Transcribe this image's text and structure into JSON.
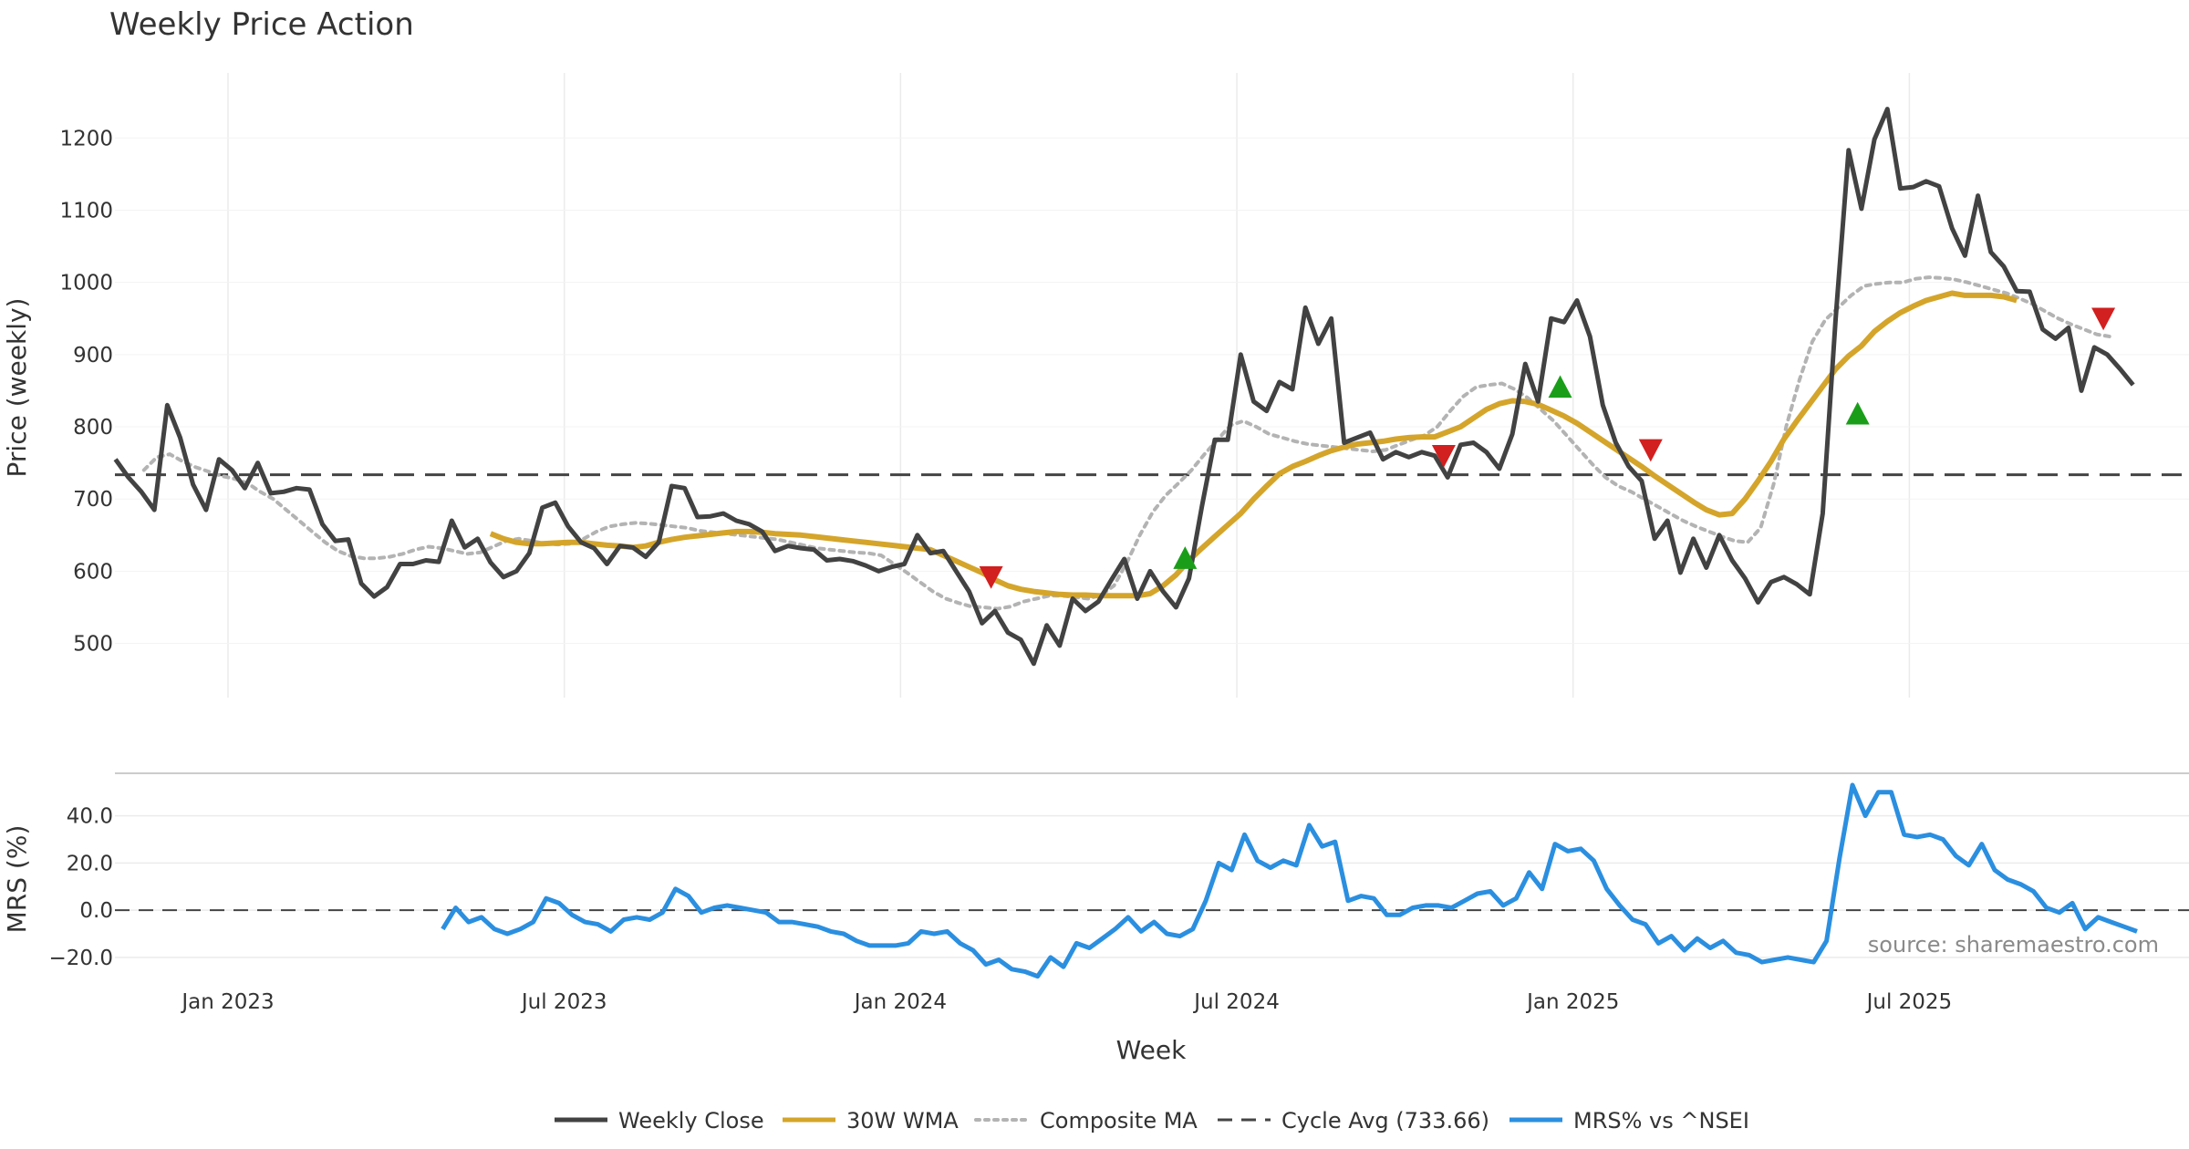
{
  "chart_data": {
    "type": "line",
    "title": "Weekly Price Action",
    "xlabel": "Week",
    "x_tick_labels": [
      "Jan 2023",
      "Jul 2023",
      "Jan 2024",
      "Jul 2024",
      "Jan 2025",
      "Jul 2025"
    ],
    "x_tick_weeks": [
      0,
      26,
      52,
      78,
      104,
      130
    ],
    "price_panel": {
      "ylabel": "Price (weekly)",
      "ylim": [
        425,
        1290
      ],
      "yticks": [
        500,
        600,
        700,
        800,
        900,
        1000,
        1100,
        1200
      ],
      "ytick_labels": [
        "500",
        "600",
        "700",
        "800",
        "900",
        "1000",
        "1100",
        "1200"
      ],
      "cycle_avg": 733.66,
      "x_start": -8.7,
      "weekly_close": [
        755,
        730,
        710,
        685,
        830,
        785,
        720,
        685,
        755,
        740,
        715,
        750,
        708,
        710,
        715,
        713,
        665,
        642,
        644,
        583,
        565,
        578,
        610,
        610,
        615,
        613,
        670,
        633,
        645,
        612,
        592,
        600,
        625,
        688,
        695,
        662,
        640,
        632,
        610,
        635,
        633,
        620,
        640,
        718,
        715,
        675,
        676,
        680,
        670,
        665,
        655,
        628,
        635,
        632,
        630,
        615,
        617,
        614,
        608,
        600,
        606,
        610,
        650,
        625,
        628,
        600,
        572,
        528,
        545,
        515,
        505,
        472,
        525,
        497,
        562,
        545,
        558,
        588,
        617,
        562,
        600,
        572,
        550,
        590,
        690,
        782,
        782,
        900,
        835,
        822,
        862,
        852,
        965,
        915,
        950,
        778,
        785,
        792,
        755,
        765,
        758,
        765,
        760,
        730,
        775,
        778,
        765,
        742,
        790,
        887,
        835,
        950,
        945,
        975,
        925,
        830,
        778,
        745,
        725,
        645,
        670,
        598,
        645,
        605,
        650,
        615,
        590,
        557,
        585,
        592,
        582,
        568,
        680,
        950,
        1183,
        1102,
        1198,
        1240,
        1130,
        1132,
        1140,
        1133,
        1075,
        1037,
        1120,
        1042,
        1022,
        988,
        987,
        935,
        922,
        937,
        850,
        910,
        900,
        880,
        858
      ],
      "wma_30w": {
        "x_start": 20.3,
        "values": [
          652,
          645,
          640,
          638,
          638,
          639,
          640,
          640,
          638,
          636,
          635,
          633,
          635,
          640,
          644,
          647,
          649,
          651,
          653,
          655,
          655,
          654,
          652,
          651,
          650,
          648,
          646,
          644,
          642,
          640,
          638,
          636,
          634,
          632,
          630,
          622,
          614,
          606,
          598,
          588,
          580,
          575,
          572,
          570,
          568,
          567,
          567,
          566,
          566,
          566,
          566,
          569,
          580,
          595,
          615,
          632,
          648,
          664,
          680,
          700,
          718,
          735,
          745,
          752,
          760,
          767,
          772,
          776,
          778,
          780,
          783,
          785,
          786,
          786,
          793,
          800,
          812,
          824,
          832,
          836,
          835,
          831,
          823,
          815,
          805,
          793,
          781,
          769,
          757,
          745,
          732,
          720,
          708,
          696,
          685,
          678,
          680,
          700,
          725,
          752,
          783,
          808,
          832,
          856,
          880,
          898,
          912,
          932,
          946,
          958,
          967,
          975,
          980,
          985,
          982,
          982,
          982,
          980,
          975
        ]
      },
      "composite_ma": {
        "x_start": -6.5,
        "values": [
          740,
          758,
          762,
          752,
          744,
          738,
          732,
          728,
          722,
          710,
          700,
          685,
          670,
          655,
          640,
          628,
          621,
          618,
          618,
          620,
          624,
          630,
          634,
          632,
          628,
          624,
          626,
          634,
          642,
          645,
          642,
          638,
          637,
          638,
          645,
          655,
          662,
          665,
          667,
          666,
          664,
          662,
          660,
          656,
          654,
          652,
          650,
          648,
          646,
          644,
          640,
          636,
          632,
          630,
          628,
          626,
          625,
          622,
          610,
          598,
          585,
          572,
          562,
          556,
          551,
          550,
          548,
          551,
          558,
          562,
          566,
          566,
          564,
          562,
          567,
          580,
          612,
          650,
          682,
          705,
          722,
          740,
          762,
          782,
          802,
          808,
          800,
          790,
          785,
          780,
          776,
          774,
          772,
          770,
          768,
          766,
          768,
          775,
          782,
          788,
          800,
          822,
          842,
          855,
          858,
          860,
          852,
          840,
          824,
          808,
          788,
          768,
          748,
          730,
          718,
          710,
          700,
          690,
          680,
          670,
          662,
          655,
          648,
          642,
          640,
          660,
          720,
          802,
          865,
          918,
          948,
          965,
          982,
          995,
          998,
          1000,
          1000,
          1005,
          1007,
          1006,
          1004,
          1000,
          995,
          990,
          985,
          978,
          970,
          960,
          950,
          942,
          935,
          928,
          925
        ]
      },
      "buy_signals": [
        {
          "week": 74,
          "price": 618
        },
        {
          "week": 103,
          "price": 855
        },
        {
          "week": 126,
          "price": 818
        }
      ],
      "sell_signals": [
        {
          "week": 59,
          "price": 592
        },
        {
          "week": 94,
          "price": 760
        },
        {
          "week": 110,
          "price": 768
        },
        {
          "week": 145,
          "price": 950
        }
      ]
    },
    "mrs_panel": {
      "ylabel": "MRS (%)",
      "ylim": [
        -27,
        58
      ],
      "yticks": [
        -20,
        0,
        20,
        40
      ],
      "ytick_labels": [
        "−20.0",
        "0.0",
        "20.0",
        "40.0"
      ],
      "series_name": "MRS% vs ^NSEI",
      "x_start": 16.6,
      "values": [
        -8,
        1,
        -5,
        -3,
        -8,
        -10,
        -8,
        -5,
        5,
        3,
        -2,
        -5,
        -6,
        -9,
        -4,
        -3,
        -4,
        -1,
        9,
        6,
        -1,
        1,
        2,
        1,
        0,
        -1,
        -5,
        -5,
        -6,
        -7,
        -9,
        -10,
        -13,
        -15,
        -15,
        -15,
        -14,
        -9,
        -10,
        -9,
        -14,
        -17,
        -23,
        -21,
        -25,
        -26,
        -28,
        -20,
        -24,
        -14,
        -16,
        -12,
        -8,
        -3,
        -9,
        -5,
        -10,
        -11,
        -8,
        4,
        20,
        17,
        32,
        21,
        18,
        21,
        19,
        36,
        27,
        29,
        4,
        6,
        5,
        -2,
        -2,
        1,
        2,
        2,
        1,
        4,
        7,
        8,
        2,
        5,
        16,
        9,
        28,
        25,
        26,
        21,
        9,
        2,
        -4,
        -6,
        -14,
        -11,
        -17,
        -12,
        -16,
        -13,
        -18,
        -19,
        -22,
        -21,
        -20,
        -21,
        -22,
        -13,
        22,
        53,
        40,
        50,
        50,
        32,
        31,
        32,
        30,
        23,
        19,
        28,
        17,
        13,
        11,
        8,
        1,
        -1,
        3,
        -8,
        -3,
        -5,
        -7,
        -9
      ]
    },
    "legend": [
      {
        "label": "Weekly Close",
        "color": "#424242",
        "style": "solid"
      },
      {
        "label": "30W WMA",
        "color": "#d4a52a",
        "style": "solid"
      },
      {
        "label": "Composite MA",
        "color": "#b3b3b3",
        "style": "dotted"
      },
      {
        "label": "Cycle Avg (733.66)",
        "color": "#444444",
        "style": "dashed"
      },
      {
        "label": "MRS% vs ^NSEI",
        "color": "#2b8fe0",
        "style": "solid"
      }
    ],
    "source": "source: sharemaestro.com",
    "colors": {
      "close": "#424242",
      "wma": "#d4a52a",
      "composite": "#b3b3b3",
      "cycle": "#444444",
      "mrs": "#2b8fe0",
      "buy": "#1a9e1a",
      "sell": "#d21f1f",
      "grid": "#ebebeb"
    }
  }
}
